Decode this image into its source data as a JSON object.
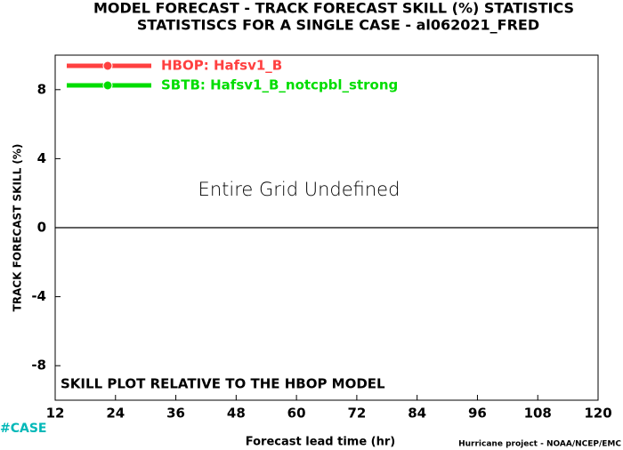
{
  "chart_data": {
    "type": "line",
    "title": "MODEL FORECAST - TRACK FORECAST SKILL (%) STATISTICS",
    "subtitle": "STATISTISCS FOR A SINGLE CASE - al062021_FRED",
    "x_label": "Forecast lead time (hr)",
    "y_label": "TRACK FORECAST SKILL (%)",
    "annotations": [
      "Entire Grid Undefined",
      "SKILL PLOT RELATIVE TO THE HBOP MODEL"
    ],
    "corner_label": "#CASE",
    "credit": "Hurricane project - NOAA/NCEP/EMC",
    "series": [
      {
        "name": "HBOP: Hafsv1_B",
        "color": "#ff4040"
      },
      {
        "name": "SBTB: Hafsv1_B_notcpbl_strong",
        "color": "#00dd00"
      }
    ],
    "xlim": [
      12,
      120
    ],
    "xticks": [
      12,
      24,
      36,
      48,
      60,
      72,
      84,
      96,
      108,
      120
    ],
    "ylim": [
      -10,
      10
    ],
    "yticks": [
      -8,
      -4,
      0,
      4,
      8
    ],
    "zero_line": true,
    "legend": "upper left"
  }
}
